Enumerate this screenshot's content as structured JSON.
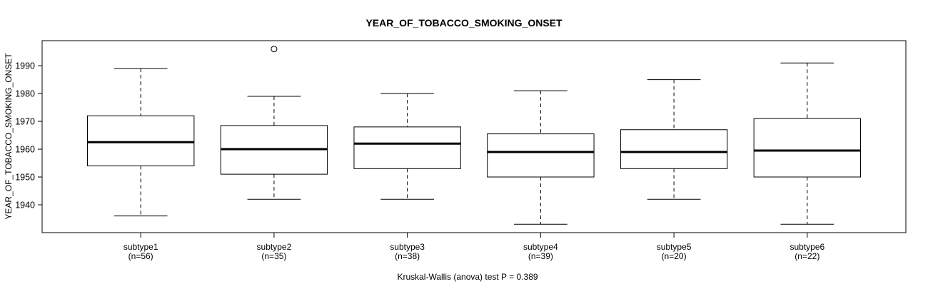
{
  "chart_data": {
    "type": "boxplot",
    "title": "YEAR_OF_TOBACCO_SMOKING_ONSET",
    "ylabel": "YEAR_OF_TOBACCO_SMOKING_ONSET",
    "xlabel": "",
    "annotation": "Kruskal-Wallis (anova) test P = 0.389",
    "y_ticks": [
      1940,
      1950,
      1960,
      1970,
      1980,
      1990
    ],
    "ylim": [
      1930,
      1999
    ],
    "xlim": [
      0.26,
      6.74
    ],
    "box_width": 0.8,
    "cap_width": 0.4,
    "grid": false,
    "frame": true,
    "categories": [
      "subtype1",
      "subtype2",
      "subtype3",
      "subtype4",
      "subtype5",
      "subtype6"
    ],
    "groups": [
      {
        "label": "subtype1",
        "n_label": "(n=56)",
        "n": 56,
        "at": 1,
        "whisker_low": 1936,
        "q1": 1954,
        "median": 1962.5,
        "q3": 1972,
        "whisker_high": 1989,
        "outliers": []
      },
      {
        "label": "subtype2",
        "n_label": "(n=35)",
        "n": 35,
        "at": 2,
        "whisker_low": 1942,
        "q1": 1951,
        "median": 1960,
        "q3": 1968.5,
        "whisker_high": 1979,
        "outliers": [
          1996
        ]
      },
      {
        "label": "subtype3",
        "n_label": "(n=38)",
        "n": 38,
        "at": 3,
        "whisker_low": 1942,
        "q1": 1953,
        "median": 1962,
        "q3": 1968,
        "whisker_high": 1980,
        "outliers": []
      },
      {
        "label": "subtype4",
        "n_label": "(n=39)",
        "n": 39,
        "at": 4,
        "whisker_low": 1933,
        "q1": 1950,
        "median": 1959,
        "q3": 1965.5,
        "whisker_high": 1981,
        "outliers": []
      },
      {
        "label": "subtype5",
        "n_label": "(n=20)",
        "n": 20,
        "at": 5,
        "whisker_low": 1942,
        "q1": 1953,
        "median": 1959,
        "q3": 1967,
        "whisker_high": 1985,
        "outliers": []
      },
      {
        "label": "subtype6",
        "n_label": "(n=22)",
        "n": 22,
        "at": 6,
        "whisker_low": 1933,
        "q1": 1950,
        "median": 1959.5,
        "q3": 1971,
        "whisker_high": 1991,
        "outliers": []
      }
    ],
    "colors": {
      "stroke": "#000000",
      "box_fill": "#ffffff",
      "background": "#ffffff"
    }
  }
}
